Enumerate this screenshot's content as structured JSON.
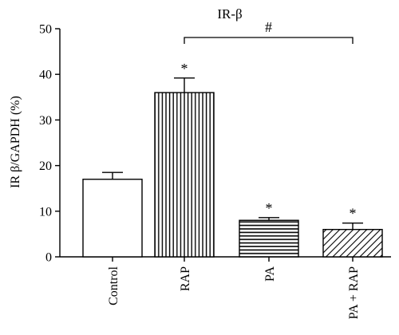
{
  "chart_data": {
    "type": "bar",
    "title": "IR-β",
    "ylabel": "IR β/GAPDH (%)",
    "xlabel": "",
    "ylim": [
      0,
      50
    ],
    "yticks": [
      0,
      10,
      20,
      30,
      40,
      50
    ],
    "grid": false,
    "categories": [
      "Control",
      "RAP",
      "PA",
      "PA + RAP"
    ],
    "values": [
      17,
      36,
      8,
      6
    ],
    "errors": [
      1.5,
      3.2,
      0.6,
      1.4
    ],
    "fill_patterns": [
      "none",
      "vertical-lines",
      "horizontal-lines",
      "diagonal-lines"
    ],
    "annotations": [
      {
        "category": "RAP",
        "text": "*"
      },
      {
        "category": "PA",
        "text": "*"
      },
      {
        "category": "PA + RAP",
        "text": "*"
      }
    ],
    "comparison": {
      "from": "RAP",
      "to": "PA + RAP",
      "text": "#"
    }
  }
}
